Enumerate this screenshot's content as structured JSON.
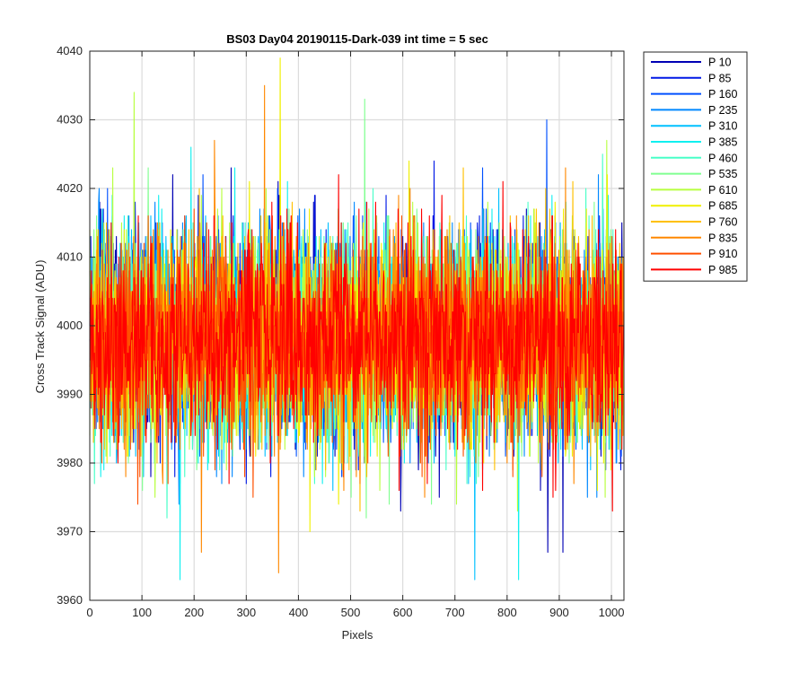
{
  "chart_data": {
    "type": "line",
    "title": "BS03 Day04 20190115-Dark-039 int time = 5 sec",
    "xlabel": "Pixels",
    "ylabel": "Cross Track Signal (ADU)",
    "xlim": [
      0,
      1024
    ],
    "ylim": [
      3960,
      4040
    ],
    "xticks": [
      0,
      100,
      200,
      300,
      400,
      500,
      600,
      700,
      800,
      900,
      1000
    ],
    "yticks": [
      3960,
      3970,
      3980,
      3990,
      4000,
      4010,
      4020,
      4030,
      4040
    ],
    "grid": true,
    "legend_position": "outside-top-right",
    "series": [
      {
        "name": "P 10",
        "color": "#0000b4"
      },
      {
        "name": "P 85",
        "color": "#0018e6"
      },
      {
        "name": "P 160",
        "color": "#0050ff"
      },
      {
        "name": "P 235",
        "color": "#0088ff"
      },
      {
        "name": "P 310",
        "color": "#00c0ff"
      },
      {
        "name": "P 385",
        "color": "#10f0f0"
      },
      {
        "name": "P 460",
        "color": "#48ffc8"
      },
      {
        "name": "P 535",
        "color": "#80ff90"
      },
      {
        "name": "P 610",
        "color": "#b8ff40"
      },
      {
        "name": "P 685",
        "color": "#f0f000"
      },
      {
        "name": "P 760",
        "color": "#ffc000"
      },
      {
        "name": "P 835",
        "color": "#ff8800"
      },
      {
        "name": "P 910",
        "color": "#ff5000"
      },
      {
        "name": "P 985",
        "color": "#ff0000"
      }
    ],
    "notes": "Dark-frame noise: every series fluctuates around ~3998 ADU, spanning roughly 3963-4039 ADU, over pixels 0-1023.",
    "center_value": 3998,
    "noise_sd": 7.5,
    "observed_extremes": [
      {
        "series": "P 685",
        "x": 365,
        "y": 4039
      },
      {
        "series": "P 835",
        "x": 362,
        "y": 3964
      },
      {
        "series": "P 835",
        "x": 335,
        "y": 4035
      },
      {
        "series": "P 610",
        "x": 85,
        "y": 4034
      },
      {
        "series": "P 535",
        "x": 527,
        "y": 4033
      },
      {
        "series": "P 160",
        "x": 876,
        "y": 4030
      },
      {
        "series": "P 385",
        "x": 173,
        "y": 3963
      },
      {
        "series": "P 310",
        "x": 738,
        "y": 3963
      },
      {
        "series": "P 385",
        "x": 822,
        "y": 3963
      },
      {
        "series": "P 835",
        "x": 214,
        "y": 3967
      },
      {
        "series": "P 10",
        "x": 878,
        "y": 3967
      },
      {
        "series": "P 10",
        "x": 907,
        "y": 3967
      }
    ]
  }
}
